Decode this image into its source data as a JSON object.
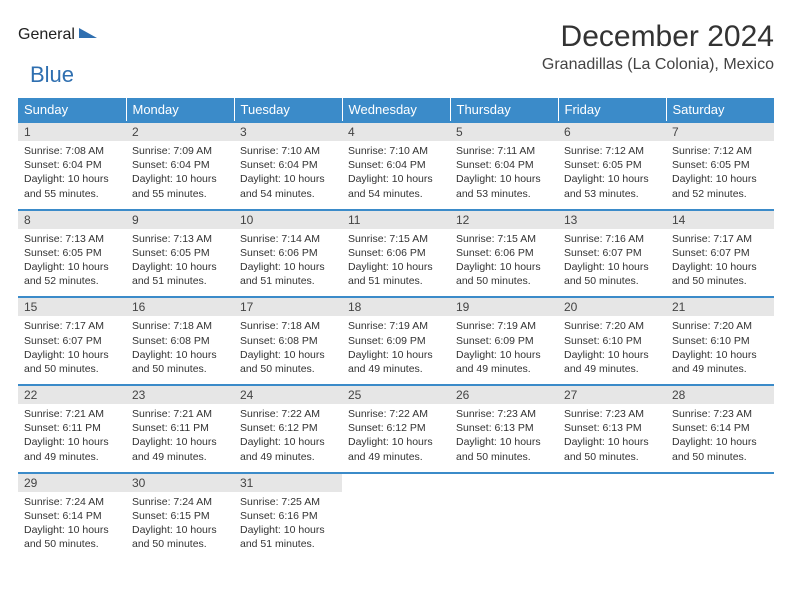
{
  "logo": {
    "part1": "General",
    "part2": "Blue"
  },
  "title": "December 2024",
  "location": "Granadillas (La Colonia), Mexico",
  "colors": {
    "header_bg": "#3b8bc9",
    "header_text": "#ffffff",
    "daynum_bg": "#e6e6e6",
    "row_divider": "#3b8bc9",
    "logo_gray": "#5a5a5a",
    "logo_blue": "#2f6fb0"
  },
  "weekdays": [
    "Sunday",
    "Monday",
    "Tuesday",
    "Wednesday",
    "Thursday",
    "Friday",
    "Saturday"
  ],
  "weeks": [
    [
      {
        "n": "1",
        "sr": "7:08 AM",
        "ss": "6:04 PM",
        "dl": "10 hours and 55 minutes."
      },
      {
        "n": "2",
        "sr": "7:09 AM",
        "ss": "6:04 PM",
        "dl": "10 hours and 55 minutes."
      },
      {
        "n": "3",
        "sr": "7:10 AM",
        "ss": "6:04 PM",
        "dl": "10 hours and 54 minutes."
      },
      {
        "n": "4",
        "sr": "7:10 AM",
        "ss": "6:04 PM",
        "dl": "10 hours and 54 minutes."
      },
      {
        "n": "5",
        "sr": "7:11 AM",
        "ss": "6:04 PM",
        "dl": "10 hours and 53 minutes."
      },
      {
        "n": "6",
        "sr": "7:12 AM",
        "ss": "6:05 PM",
        "dl": "10 hours and 53 minutes."
      },
      {
        "n": "7",
        "sr": "7:12 AM",
        "ss": "6:05 PM",
        "dl": "10 hours and 52 minutes."
      }
    ],
    [
      {
        "n": "8",
        "sr": "7:13 AM",
        "ss": "6:05 PM",
        "dl": "10 hours and 52 minutes."
      },
      {
        "n": "9",
        "sr": "7:13 AM",
        "ss": "6:05 PM",
        "dl": "10 hours and 51 minutes."
      },
      {
        "n": "10",
        "sr": "7:14 AM",
        "ss": "6:06 PM",
        "dl": "10 hours and 51 minutes."
      },
      {
        "n": "11",
        "sr": "7:15 AM",
        "ss": "6:06 PM",
        "dl": "10 hours and 51 minutes."
      },
      {
        "n": "12",
        "sr": "7:15 AM",
        "ss": "6:06 PM",
        "dl": "10 hours and 50 minutes."
      },
      {
        "n": "13",
        "sr": "7:16 AM",
        "ss": "6:07 PM",
        "dl": "10 hours and 50 minutes."
      },
      {
        "n": "14",
        "sr": "7:17 AM",
        "ss": "6:07 PM",
        "dl": "10 hours and 50 minutes."
      }
    ],
    [
      {
        "n": "15",
        "sr": "7:17 AM",
        "ss": "6:07 PM",
        "dl": "10 hours and 50 minutes."
      },
      {
        "n": "16",
        "sr": "7:18 AM",
        "ss": "6:08 PM",
        "dl": "10 hours and 50 minutes."
      },
      {
        "n": "17",
        "sr": "7:18 AM",
        "ss": "6:08 PM",
        "dl": "10 hours and 50 minutes."
      },
      {
        "n": "18",
        "sr": "7:19 AM",
        "ss": "6:09 PM",
        "dl": "10 hours and 49 minutes."
      },
      {
        "n": "19",
        "sr": "7:19 AM",
        "ss": "6:09 PM",
        "dl": "10 hours and 49 minutes."
      },
      {
        "n": "20",
        "sr": "7:20 AM",
        "ss": "6:10 PM",
        "dl": "10 hours and 49 minutes."
      },
      {
        "n": "21",
        "sr": "7:20 AM",
        "ss": "6:10 PM",
        "dl": "10 hours and 49 minutes."
      }
    ],
    [
      {
        "n": "22",
        "sr": "7:21 AM",
        "ss": "6:11 PM",
        "dl": "10 hours and 49 minutes."
      },
      {
        "n": "23",
        "sr": "7:21 AM",
        "ss": "6:11 PM",
        "dl": "10 hours and 49 minutes."
      },
      {
        "n": "24",
        "sr": "7:22 AM",
        "ss": "6:12 PM",
        "dl": "10 hours and 49 minutes."
      },
      {
        "n": "25",
        "sr": "7:22 AM",
        "ss": "6:12 PM",
        "dl": "10 hours and 49 minutes."
      },
      {
        "n": "26",
        "sr": "7:23 AM",
        "ss": "6:13 PM",
        "dl": "10 hours and 50 minutes."
      },
      {
        "n": "27",
        "sr": "7:23 AM",
        "ss": "6:13 PM",
        "dl": "10 hours and 50 minutes."
      },
      {
        "n": "28",
        "sr": "7:23 AM",
        "ss": "6:14 PM",
        "dl": "10 hours and 50 minutes."
      }
    ],
    [
      {
        "n": "29",
        "sr": "7:24 AM",
        "ss": "6:14 PM",
        "dl": "10 hours and 50 minutes."
      },
      {
        "n": "30",
        "sr": "7:24 AM",
        "ss": "6:15 PM",
        "dl": "10 hours and 50 minutes."
      },
      {
        "n": "31",
        "sr": "7:25 AM",
        "ss": "6:16 PM",
        "dl": "10 hours and 51 minutes."
      },
      null,
      null,
      null,
      null
    ]
  ],
  "labels": {
    "sunrise": "Sunrise: ",
    "sunset": "Sunset: ",
    "daylight": "Daylight: "
  }
}
